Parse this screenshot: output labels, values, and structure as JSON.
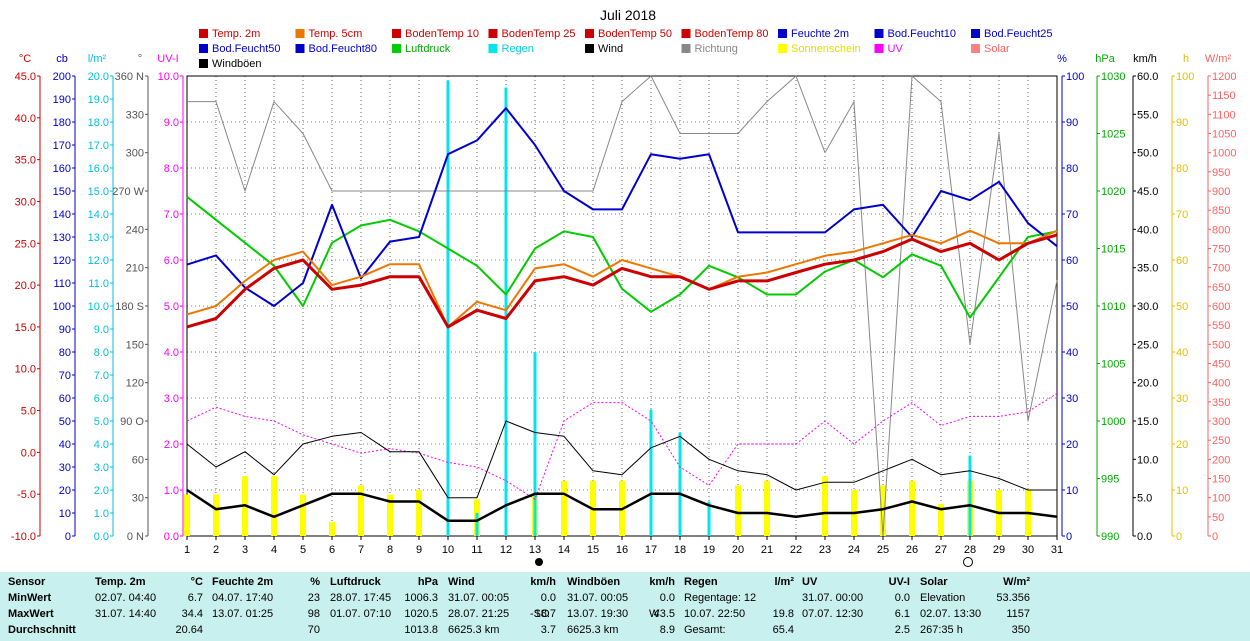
{
  "title": "Juli 2018",
  "colors": {
    "temp2m": "#cc0000",
    "temp5cm": "#ee7700",
    "feuchte": "#0000cc",
    "luftdruck": "#00cc00",
    "regen": "#00e5ee",
    "wind": "#000000",
    "richtung": "#888888",
    "sonne": "#ffff00",
    "uv": "#ff00ff",
    "solar": "#ff8080",
    "blue": "#0000cc",
    "red": "#cc0000",
    "grey": "#555555"
  },
  "legend": [
    {
      "label": "Temp. 2m",
      "color": "#cc0000",
      "text_color": "#cc0000"
    },
    {
      "label": "Temp. 5cm",
      "color": "#ee7700",
      "text_color": "#cc0000"
    },
    {
      "label": "BodenTemp 10",
      "color": "#cc0000",
      "text_color": "#cc0000"
    },
    {
      "label": "BodenTemp 25",
      "color": "#cc0000",
      "text_color": "#cc0000"
    },
    {
      "label": "BodenTemp 50",
      "color": "#cc0000",
      "text_color": "#cc0000"
    },
    {
      "label": "BodenTemp 80",
      "color": "#cc0000",
      "text_color": "#cc0000"
    },
    {
      "label": "Feuchte 2m",
      "color": "#0000cc",
      "text_color": "#0000cc"
    },
    {
      "label": "Bod.Feucht10",
      "color": "#0000cc",
      "text_color": "#0000cc"
    },
    {
      "label": "Bod.Feucht25",
      "color": "#0000cc",
      "text_color": "#0000cc"
    },
    {
      "label": "Bod.Feucht50",
      "color": "#0000cc",
      "text_color": "#0000cc"
    },
    {
      "label": "Bod.Feucht80",
      "color": "#0000cc",
      "text_color": "#0000cc"
    },
    {
      "label": "Luftdruck",
      "color": "#00cc00",
      "text_color": "#00aa00"
    },
    {
      "label": "Regen",
      "color": "#00e5ee",
      "text_color": "#00d0e0"
    },
    {
      "label": "Wind",
      "color": "#000000",
      "text_color": "#000000"
    },
    {
      "label": "Richtung",
      "color": "#888888",
      "text_color": "#888888"
    },
    {
      "label": "Sonnenschein",
      "color": "#ffff00",
      "text_color": "#e0e000"
    },
    {
      "label": "UV",
      "color": "#ff00ff",
      "text_color": "#ff00ff"
    },
    {
      "label": "Solar",
      "color": "#ff8080",
      "text_color": "#ff6060"
    },
    {
      "label": "Windböen",
      "color": "#000000",
      "text_color": "#000000"
    }
  ],
  "chart_data": {
    "type": "line",
    "x": [
      1,
      2,
      3,
      4,
      5,
      6,
      7,
      8,
      9,
      10,
      11,
      12,
      13,
      14,
      15,
      16,
      17,
      18,
      19,
      20,
      21,
      22,
      23,
      24,
      25,
      26,
      27,
      28,
      29,
      30,
      31
    ],
    "axes": [
      {
        "unit": "°C",
        "color": "#cc0000",
        "min": -10,
        "max": 45,
        "ticks": [
          "45.0",
          "40.0",
          "35.0",
          "30.0",
          "25.0",
          "20.0",
          "15.0",
          "10.0",
          "5.0",
          "0.0",
          "-5.0",
          "-10.0"
        ]
      },
      {
        "unit": "cb",
        "color": "#0000cc",
        "min": 0,
        "max": 200,
        "ticks": [
          "200",
          "190",
          "180",
          "170",
          "160",
          "150",
          "140",
          "130",
          "120",
          "110",
          "100",
          "90",
          "80",
          "70",
          "60",
          "50",
          "40",
          "30",
          "20",
          "10",
          "0"
        ]
      },
      {
        "unit": "l/m²",
        "color": "#00c0e0",
        "min": 0,
        "max": 20,
        "ticks": [
          "20.0",
          "19.0",
          "18.0",
          "17.0",
          "16.0",
          "15.0",
          "14.0",
          "13.0",
          "12.0",
          "11.0",
          "10.0",
          "9.0",
          "8.0",
          "7.0",
          "6.0",
          "5.0",
          "4.0",
          "3.0",
          "2.0",
          "1.0",
          "0.0"
        ]
      },
      {
        "unit": "°",
        "color": "#555555",
        "min": 0,
        "max": 360,
        "ticks": [
          "360 N",
          "330",
          "300",
          "270 W",
          "240",
          "210",
          "180 S",
          "150",
          "120",
          "90   O",
          "60",
          "30",
          "0    N"
        ]
      },
      {
        "unit": "UV-I",
        "color": "#ff00ff",
        "min": 0,
        "max": 10,
        "ticks": [
          "10.0",
          "9.0",
          "8.0",
          "7.0",
          "6.0",
          "5.0",
          "4.0",
          "3.0",
          "2.0",
          "1.0",
          "0.0"
        ]
      },
      {
        "unit": "%",
        "color": "#0000cc",
        "min": 0,
        "max": 100,
        "ticks": [
          "100",
          "90",
          "80",
          "70",
          "60",
          "50",
          "40",
          "30",
          "20",
          "10",
          "0"
        ]
      },
      {
        "unit": "hPa",
        "color": "#00aa00",
        "min": 990,
        "max": 1030,
        "ticks": [
          "1030",
          "1025",
          "1020",
          "1015",
          "1010",
          "1005",
          "1000",
          "995",
          "990"
        ]
      },
      {
        "unit": "km/h",
        "color": "#000000",
        "min": 0,
        "max": 60,
        "ticks": [
          "60.0",
          "55.0",
          "50.0",
          "45.0",
          "40.0",
          "35.0",
          "30.0",
          "25.0",
          "20.0",
          "15.0",
          "10.0",
          "5.0",
          "0.0"
        ]
      },
      {
        "unit": "h",
        "color": "#e0c000",
        "min": 0,
        "max": 100,
        "ticks": [
          "100",
          "90",
          "80",
          "70",
          "60",
          "50",
          "40",
          "30",
          "20",
          "10",
          "0"
        ]
      },
      {
        "unit": "W/m²",
        "color": "#ff6060",
        "min": 0,
        "max": 1200,
        "ticks": [
          "1200",
          "1150",
          "1100",
          "1050",
          "1000",
          "950",
          "900",
          "850",
          "800",
          "750",
          "700",
          "650",
          "600",
          "550",
          "500",
          "450",
          "400",
          "350",
          "300",
          "250",
          "200",
          "150",
          "100",
          "50",
          "0"
        ]
      }
    ],
    "series": [
      {
        "name": "Feuchte 2m",
        "axis": "%",
        "values": [
          59,
          61,
          54,
          50,
          55,
          72,
          56,
          64,
          65,
          83,
          86,
          93,
          85,
          75,
          71,
          71,
          83,
          82,
          83,
          66,
          66,
          66,
          66,
          71,
          72,
          65,
          75,
          73,
          77,
          68,
          63
        ]
      },
      {
        "name": "Luftdruck",
        "axis": "hPa",
        "values": [
          1019.5,
          1017.5,
          1015.5,
          1013.5,
          1010,
          1015.5,
          1017,
          1017.5,
          1016.5,
          1015,
          1013.5,
          1011,
          1015,
          1016.5,
          1016,
          1011.5,
          1009.5,
          1011,
          1013.5,
          1012.5,
          1011,
          1011,
          1013,
          1014,
          1012.5,
          1014.5,
          1013.5,
          1009,
          1012.5,
          1016,
          1016.5
        ]
      },
      {
        "name": "Temp. 5cm",
        "axis": "°C",
        "values": [
          16.5,
          17.5,
          20.5,
          23,
          24,
          20,
          21,
          22.5,
          22.5,
          15,
          18,
          17,
          22,
          22.5,
          21,
          23,
          22,
          21,
          19.5,
          21,
          21.5,
          22.5,
          23.5,
          24,
          25,
          26,
          25,
          26.5,
          25,
          25,
          26.5
        ]
      },
      {
        "name": "Temp. 2m",
        "axis": "°C",
        "values": [
          15,
          16,
          19.5,
          22,
          23,
          19.5,
          20,
          21,
          21,
          15,
          17,
          16,
          20.5,
          21,
          20,
          22,
          21,
          21,
          19.5,
          20.5,
          20.5,
          21.5,
          22.5,
          23,
          24,
          25.5,
          24,
          25,
          23,
          25,
          26
        ]
      },
      {
        "name": "Wind",
        "axis": "km/h",
        "values": [
          6,
          3.5,
          4,
          2.5,
          4,
          5.5,
          5.5,
          4.5,
          4.5,
          2,
          2,
          4,
          5.5,
          5.5,
          3.5,
          3.5,
          5.5,
          5.5,
          4,
          3,
          3,
          2.5,
          3,
          3,
          3.5,
          4.5,
          3.5,
          4,
          3,
          3,
          2.5
        ]
      },
      {
        "name": "Windböen",
        "axis": "km/h",
        "values": [
          12,
          9,
          11,
          8,
          12,
          13,
          13.5,
          11,
          11,
          5,
          5,
          15,
          13.5,
          13,
          8.5,
          8,
          11.5,
          13,
          10,
          8.5,
          8,
          6,
          7,
          7,
          8.5,
          10,
          8,
          8.5,
          7.5,
          6,
          6
        ]
      },
      {
        "name": "Richtung",
        "axis": "°",
        "values": [
          340,
          340,
          270,
          340,
          315,
          270,
          270,
          270,
          270,
          270,
          270,
          270,
          270,
          270,
          270,
          340,
          360,
          315,
          315,
          315,
          340,
          360,
          300,
          340,
          0,
          360,
          340,
          150,
          315,
          90,
          200
        ]
      },
      {
        "name": "Regen",
        "axis": "l/m²",
        "values": [
          0,
          0,
          0,
          0,
          0,
          0,
          0,
          0,
          0,
          19.8,
          1,
          19.5,
          8,
          0,
          0,
          0,
          5.5,
          4.5,
          1.5,
          0,
          0,
          0,
          0,
          0,
          0,
          0,
          0,
          3.5,
          0,
          0,
          0
        ]
      },
      {
        "name": "Sonnenschein",
        "axis": "h",
        "values": [
          9,
          9,
          13,
          13,
          9,
          3,
          11,
          9,
          10,
          0,
          8,
          0,
          9,
          12,
          12,
          12,
          0,
          0,
          0,
          11,
          12,
          0,
          13,
          10,
          11,
          12,
          7,
          12,
          10,
          10,
          0
        ]
      },
      {
        "name": "UV",
        "axis": "UV-I",
        "values": [
          2.5,
          2.8,
          2.6,
          2.5,
          2.2,
          2,
          1.8,
          1.9,
          1.8,
          1.6,
          1.5,
          1.2,
          0.8,
          2.5,
          2.9,
          2.9,
          2.5,
          1.5,
          1.1,
          2,
          2,
          2,
          2.5,
          2,
          2.5,
          2.9,
          2.4,
          2.6,
          2.6,
          2.7,
          3.1
        ]
      }
    ],
    "x_marker_day": 13,
    "x_marker_day2": 28
  },
  "stats": [
    {
      "head": "Sensor",
      "head_unit": "",
      "rows": [
        [
          "MinWert",
          "",
          ""
        ],
        [
          "MaxWert",
          "",
          ""
        ],
        [
          "Durchschnitt",
          "",
          ""
        ]
      ]
    },
    {
      "head": "Temp. 2m",
      "head_unit": "°C",
      "rows": [
        [
          "02.07.  04:40",
          "",
          "6.7"
        ],
        [
          "31.07.  14:40",
          "",
          "34.4"
        ],
        [
          "",
          "",
          "20.64"
        ]
      ]
    },
    {
      "head": "Feuchte 2m",
      "head_unit": "%",
      "rows": [
        [
          "04.07.  17:40",
          "",
          "23"
        ],
        [
          "13.07.  01:25",
          "",
          "98"
        ],
        [
          "",
          "",
          "70"
        ]
      ]
    },
    {
      "head": "Luftdruck",
      "head_unit": "hPa",
      "rows": [
        [
          "28.07.  17:45",
          "",
          "1006.3"
        ],
        [
          "01.07.  07:10",
          "",
          "1020.5"
        ],
        [
          "",
          "",
          "1013.8"
        ]
      ]
    },
    {
      "head": "Wind",
      "head_unit": "km/h",
      "rows": [
        [
          "31.07.  00:05",
          "",
          "0.0"
        ],
        [
          "28.07.  21:25",
          "-SO",
          "18.7"
        ],
        [
          "6625.3 km",
          "",
          "3.7"
        ]
      ]
    },
    {
      "head": "Windböen",
      "head_unit": "km/h",
      "rows": [
        [
          "31.07.  00:05",
          "",
          "0.0"
        ],
        [
          "13.07.  19:30",
          "W",
          "43.5"
        ],
        [
          "6625.3 km",
          "",
          "8.9"
        ]
      ]
    },
    {
      "head": "Regen",
      "head_unit": "l/m²",
      "rows": [
        [
          "Regentage: 12",
          "",
          ""
        ],
        [
          "10.07.  22:50",
          "",
          "19.8"
        ],
        [
          "Gesamt:",
          "",
          "65.4"
        ]
      ]
    },
    {
      "head": "UV",
      "head_unit": "UV-I",
      "rows": [
        [
          "31.07.  00:00",
          "",
          "0.0"
        ],
        [
          "07.07.  12:30",
          "",
          "6.1"
        ],
        [
          "",
          "",
          "2.5"
        ]
      ]
    },
    {
      "head": "Solar",
      "head_unit": "W/m²",
      "rows": [
        [
          "Elevation",
          "",
          "53.356"
        ],
        [
          "02.07.  13:30",
          "",
          "1157"
        ],
        [
          "267:35 h",
          "",
          "350"
        ]
      ]
    }
  ]
}
